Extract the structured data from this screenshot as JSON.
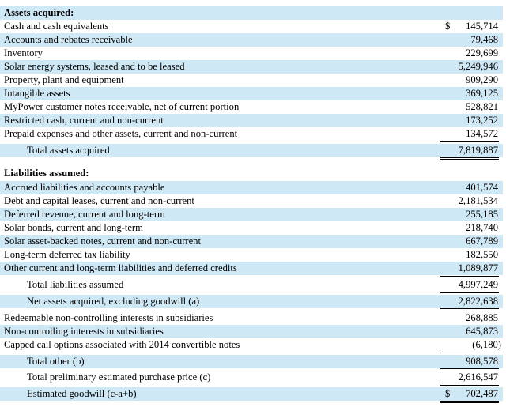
{
  "assets": {
    "heading": "Assets acquired:",
    "items": [
      {
        "label": "Cash and cash equivalents",
        "currency": "$",
        "value": "145,714"
      },
      {
        "label": "Accounts and rebates receivable",
        "value": "79,468"
      },
      {
        "label": "Inventory",
        "value": "229,699"
      },
      {
        "label": "Solar energy systems, leased and to be leased",
        "value": "5,249,946"
      },
      {
        "label": "Property, plant and equipment",
        "value": "909,290"
      },
      {
        "label": "Intangible assets",
        "value": "369,125"
      },
      {
        "label": "MyPower customer notes receivable, net of current portion",
        "value": "528,821"
      },
      {
        "label": "Restricted cash, current and non-current",
        "value": "173,252"
      },
      {
        "label": "Prepaid expenses and other assets, current and non-current",
        "value": "134,572"
      }
    ],
    "total_label": "Total assets acquired",
    "total_value": "7,819,887"
  },
  "liabilities": {
    "heading": "Liabilities assumed:",
    "items": [
      {
        "label": "Accrued liabilities and accounts payable",
        "value": "401,574"
      },
      {
        "label": "Debt and capital leases, current and non-current",
        "value": "2,181,534"
      },
      {
        "label": "Deferred revenue, current and long-term",
        "value": "255,185"
      },
      {
        "label": "Solar bonds, current and long-term",
        "value": "218,740"
      },
      {
        "label": "Solar asset-backed notes, current and non-current",
        "value": "667,789"
      },
      {
        "label": "Long-term deferred tax liability",
        "value": "182,550"
      },
      {
        "label": "Other current and long-term liabilities and deferred credits",
        "value": "1,089,877"
      }
    ],
    "total_label": "Total liabilities assumed",
    "total_value": "4,997,249"
  },
  "net_assets": {
    "label": "Net assets acquired, excluding goodwill (a)",
    "value": "2,822,638"
  },
  "other": {
    "items": [
      {
        "label": "Redeemable non-controlling interests in subsidiaries",
        "value": "268,885"
      },
      {
        "label": "Non-controlling interests in subsidiaries",
        "value": "645,873"
      },
      {
        "label": "Capped call options associated with 2014 convertible notes",
        "value": "(6,180)"
      }
    ],
    "total_label": "Total other (b)",
    "total_value": "908,578"
  },
  "purchase_price": {
    "label": "Total preliminary estimated purchase price (c)",
    "value": "2,616,547"
  },
  "goodwill": {
    "label": "Estimated goodwill (c-a+b)",
    "currency": "$",
    "value": "702,487"
  }
}
